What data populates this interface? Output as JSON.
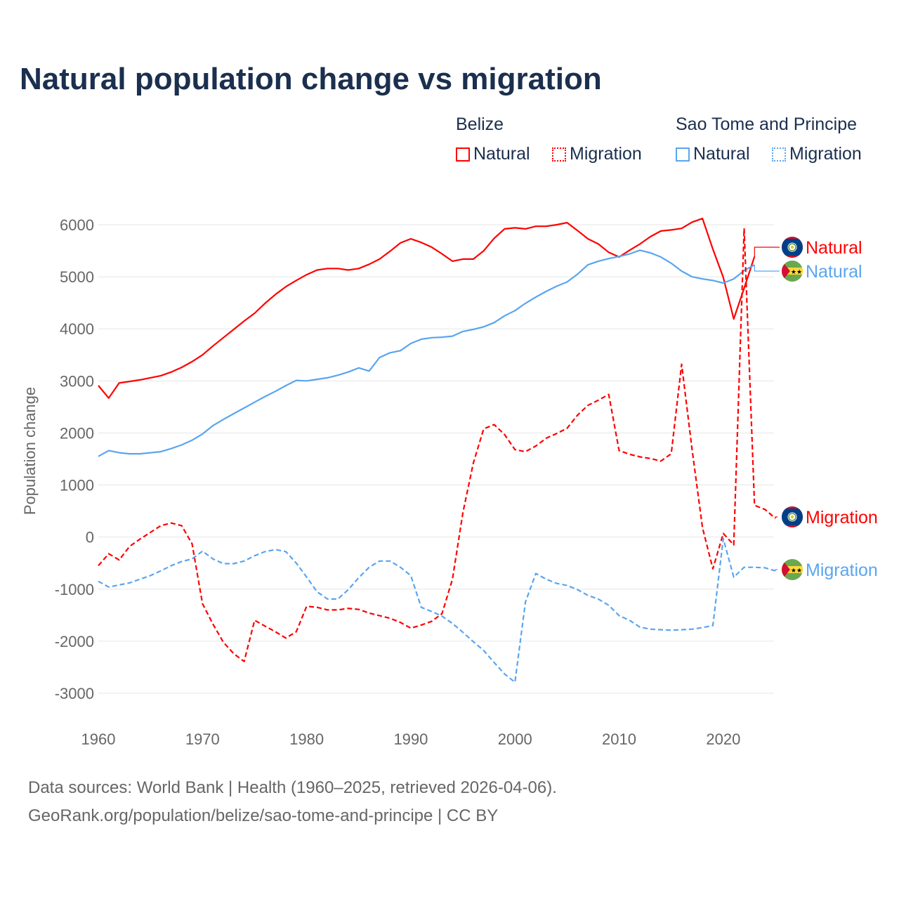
{
  "title": "Natural population change vs migration",
  "legend": {
    "groups": [
      {
        "name": "Belize",
        "items": [
          "Natural",
          "Migration"
        ],
        "color": "#ff0000"
      },
      {
        "name": "Sao Tome and Principe",
        "items": [
          "Natural",
          "Migration"
        ],
        "color": "#5aa5ef"
      }
    ]
  },
  "footer": {
    "line1": "Data sources: World Bank | Health (1960–2025, retrieved 2026-04-06).",
    "line2": "GeoRank.org/population/belize/sao-tome-and-principe | CC BY"
  },
  "chart_data": {
    "type": "line",
    "title": "Natural population change vs migration",
    "xlabel": "",
    "ylabel": "Population change",
    "xlim": [
      1960,
      2025
    ],
    "ylim": [
      -3000,
      6000
    ],
    "xticks": [
      1960,
      1970,
      1980,
      1990,
      2000,
      2010,
      2020
    ],
    "yticks": [
      6000,
      5000,
      4000,
      3000,
      2000,
      1000,
      0,
      -1000,
      -2000,
      -3000
    ],
    "grid": true,
    "legend_position": "top-right",
    "start_year": 1960,
    "series": [
      {
        "name": "Belize Natural",
        "label": "Natural",
        "country": "Belize",
        "color": "#ff0000",
        "dash": false,
        "values": [
          2910,
          2670,
          2960,
          2990,
          3020,
          3060,
          3100,
          3170,
          3260,
          3370,
          3500,
          3670,
          3830,
          3990,
          4150,
          4300,
          4490,
          4660,
          4810,
          4930,
          5040,
          5130,
          5160,
          5160,
          5130,
          5160,
          5240,
          5340,
          5490,
          5650,
          5730,
          5660,
          5570,
          5440,
          5300,
          5340,
          5340,
          5500,
          5740,
          5920,
          5940,
          5920,
          5970,
          5970,
          6000,
          6040,
          5890,
          5730,
          5630,
          5470,
          5380,
          5510,
          5630,
          5770,
          5880,
          5900,
          5930,
          6050,
          6120,
          5530,
          4990,
          4190,
          4780,
          5390
        ]
      },
      {
        "name": "Sao Tome and Principe Natural",
        "label": "Natural",
        "country": "Sao Tome and Principe",
        "color": "#5aa5ef",
        "dash": false,
        "values": [
          1550,
          1660,
          1620,
          1600,
          1600,
          1620,
          1640,
          1700,
          1770,
          1860,
          1980,
          2140,
          2260,
          2370,
          2480,
          2590,
          2700,
          2800,
          2910,
          3010,
          3000,
          3030,
          3060,
          3110,
          3170,
          3250,
          3190,
          3450,
          3540,
          3580,
          3720,
          3800,
          3830,
          3840,
          3860,
          3950,
          3990,
          4040,
          4120,
          4250,
          4350,
          4490,
          4610,
          4720,
          4820,
          4900,
          5050,
          5230,
          5300,
          5350,
          5390,
          5440,
          5510,
          5460,
          5380,
          5260,
          5110,
          5000,
          4960,
          4930,
          4880,
          4960,
          5120,
          5230
        ]
      },
      {
        "name": "Belize Migration",
        "label": "Migration",
        "country": "Belize",
        "color": "#ff0000",
        "dash": true,
        "values": [
          -550,
          -320,
          -440,
          -180,
          -40,
          90,
          220,
          270,
          220,
          -130,
          -1280,
          -1670,
          -2020,
          -2240,
          -2390,
          -1600,
          -1710,
          -1820,
          -1940,
          -1820,
          -1330,
          -1350,
          -1400,
          -1400,
          -1370,
          -1390,
          -1460,
          -1510,
          -1560,
          -1640,
          -1750,
          -1690,
          -1620,
          -1470,
          -810,
          470,
          1420,
          2080,
          2160,
          1970,
          1680,
          1640,
          1750,
          1900,
          1990,
          2090,
          2340,
          2530,
          2630,
          2740,
          1660,
          1590,
          1540,
          1510,
          1460,
          1600,
          3320,
          1680,
          180,
          -610,
          70,
          -150,
          5930,
          610,
          530,
          360
        ]
      },
      {
        "name": "Sao Tome and Principe Migration",
        "label": "Migration",
        "country": "Sao Tome and Principe",
        "color": "#5aa5ef",
        "dash": true,
        "values": [
          -850,
          -960,
          -920,
          -880,
          -810,
          -740,
          -650,
          -550,
          -470,
          -420,
          -270,
          -420,
          -510,
          -510,
          -460,
          -360,
          -280,
          -240,
          -280,
          -500,
          -770,
          -1050,
          -1190,
          -1190,
          -1010,
          -780,
          -580,
          -460,
          -460,
          -580,
          -740,
          -1350,
          -1430,
          -1520,
          -1660,
          -1830,
          -2010,
          -2180,
          -2410,
          -2630,
          -2790,
          -1250,
          -700,
          -810,
          -890,
          -930,
          -1010,
          -1120,
          -1190,
          -1310,
          -1510,
          -1600,
          -1730,
          -1770,
          -1780,
          -1790,
          -1780,
          -1770,
          -1740,
          -1700,
          -30,
          -770,
          -580,
          -580,
          -590,
          -650
        ]
      }
    ]
  }
}
